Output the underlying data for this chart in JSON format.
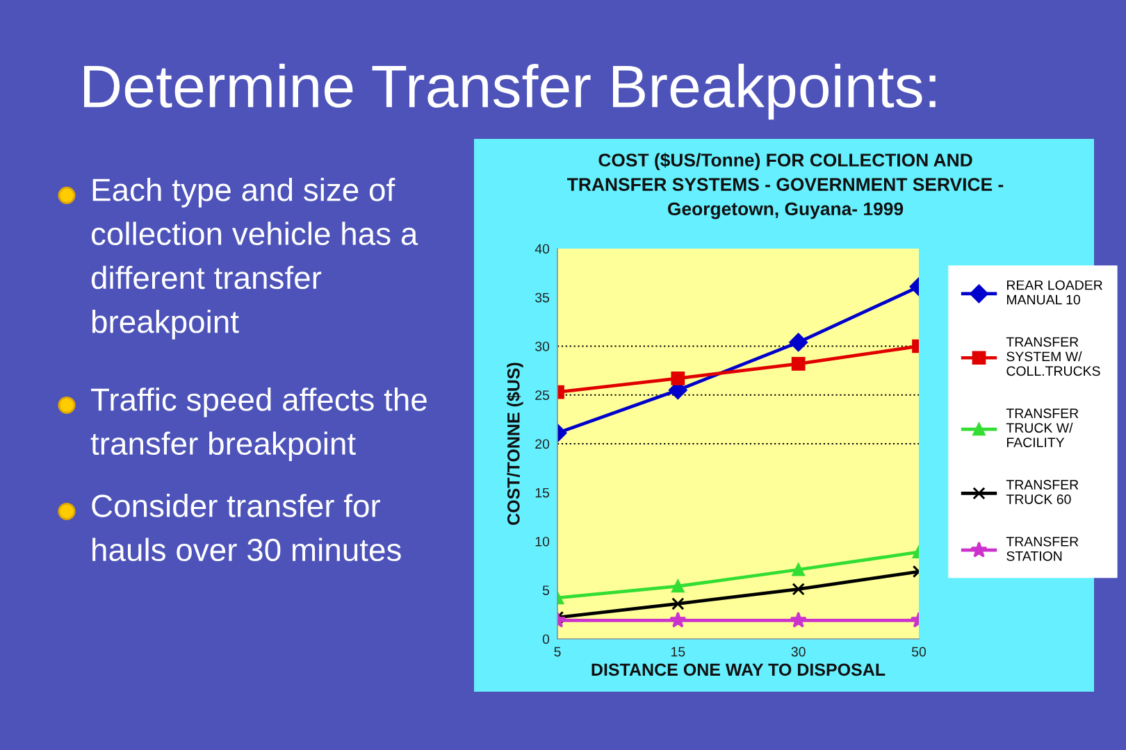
{
  "chart_data": {
    "type": "line",
    "title": "COST ($US/Tonne) FOR COLLECTION AND TRANSFER SYSTEMS - GOVERNMENT SERVICE - Georgetown, Guyana- 1999",
    "xlabel": "DISTANCE ONE WAY TO DISPOSAL",
    "ylabel": "COST/TONNE ($US)",
    "annotations": [
      "Determine Transfer Breakpoints:",
      "Each type and size of collection vehicle has a different transfer breakpoint",
      "Traffic speed affects the transfer breakpoint",
      "Consider transfer for hauls over 30 minutes"
    ],
    "categories": [
      "5",
      "15",
      "30",
      "50"
    ],
    "series": [
      {
        "name": "REAR LOADER MANUAL 10",
        "color": "#0000cc",
        "marker": "diamond",
        "values": [
          21.1,
          25.5,
          30.4,
          36.1
        ]
      },
      {
        "name": "TRANSFER SYSTEM W/ COLL.TRUCKS",
        "color": "#e00000",
        "marker": "square",
        "values": [
          25.3,
          26.7,
          28.2,
          30.0
        ]
      },
      {
        "name": "TRANSFER TRUCK W/ FACILITY",
        "color": "#33dd33",
        "marker": "triangle",
        "values": [
          4.2,
          5.4,
          7.1,
          8.9
        ]
      },
      {
        "name": "TRANSFER TRUCK 60",
        "color": "#000000",
        "marker": "cross",
        "values": [
          2.2,
          3.6,
          5.1,
          6.9
        ]
      },
      {
        "name": "TRANSFER STATION",
        "color": "#cc33cc",
        "marker": "star",
        "values": [
          1.9,
          1.9,
          1.9,
          1.9
        ]
      }
    ],
    "ylim": [
      0,
      40
    ],
    "yticks": [
      0,
      5,
      10,
      15,
      20,
      25,
      30,
      35,
      40
    ],
    "grid": false,
    "legend": "right",
    "line_style": "solid",
    "ref_lines": [
      {
        "axis": "y",
        "value": 20,
        "color": "#000000",
        "line_style": "dotted"
      },
      {
        "axis": "y",
        "value": 25,
        "color": "#000000",
        "line_style": "dotted"
      },
      {
        "axis": "y",
        "value": 30,
        "color": "#000000",
        "line_style": "dotted"
      }
    ]
  }
}
